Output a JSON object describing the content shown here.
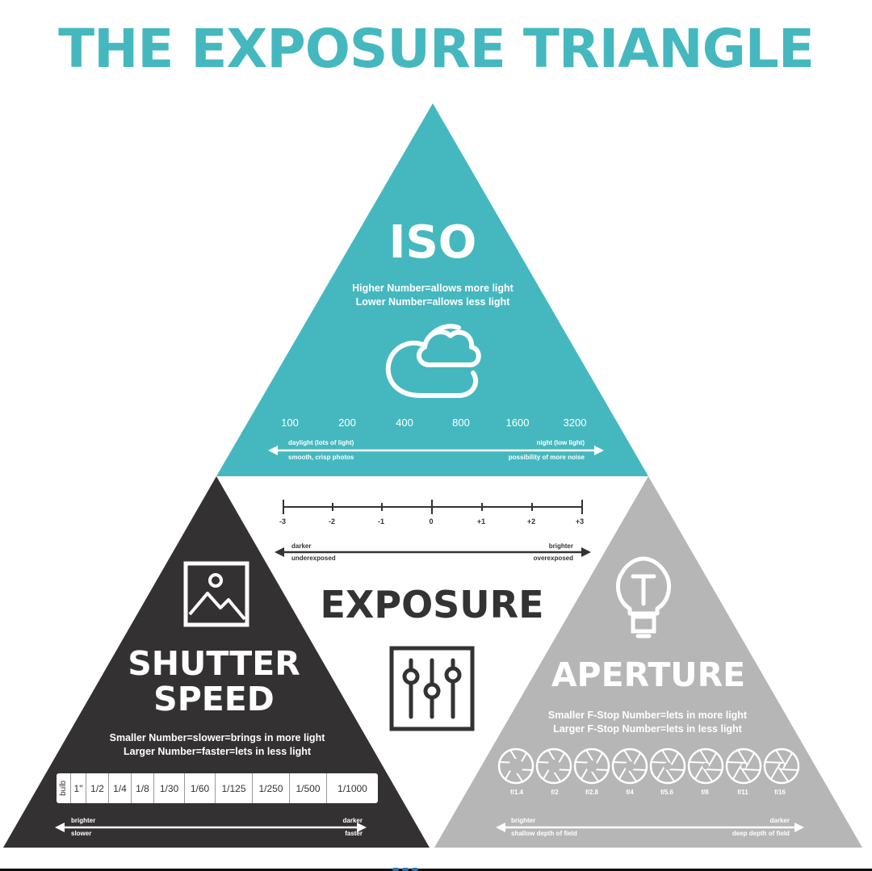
{
  "title": "THE EXPOSURE TRIANGLE",
  "colors": {
    "iso": "#45b8bf",
    "shutter": "#333132",
    "aperture": "#b7b6b7",
    "center_text": "#333333"
  },
  "iso": {
    "heading": "ISO",
    "line1": "Higher Number=allows more light",
    "line2": "Lower Number=allows less light",
    "icon": "cloud-icon",
    "values": [
      "100",
      "200",
      "400",
      "800",
      "1600",
      "3200"
    ],
    "left_top": "daylight (lots of light)",
    "left_bottom": "smooth, crisp photos",
    "right_top": "night (low light)",
    "right_bottom": "possibility of more noise"
  },
  "exposure": {
    "heading": "EXPOSURE",
    "scale": [
      "-3",
      "-2",
      "-1",
      "0",
      "+1",
      "+2",
      "+3"
    ],
    "left_top": "darker",
    "left_bottom": "underexposed",
    "right_top": "brighter",
    "right_bottom": "overexposed",
    "icon": "sliders-icon"
  },
  "shutter": {
    "heading_line1": "SHUTTER",
    "heading_line2": "SPEED",
    "icon": "landscape-photo-icon",
    "line1": "Smaller Number=slower=brings in more light",
    "line2": "Larger Number=faster=lets in less light",
    "values": [
      "bulb",
      "1\"",
      "1/2",
      "1/4",
      "1/8",
      "1/30",
      "1/60",
      "1/125",
      "1/250",
      "1/500",
      "1/1000"
    ],
    "left_top": "brighter",
    "left_bottom": "slower",
    "right_top": "darker",
    "right_bottom": "faster"
  },
  "aperture": {
    "heading": "APERTURE",
    "icon": "light-bulb-icon",
    "line1": "Smaller F-Stop Number=lets in more light",
    "line2": "Larger F-Stop Number=lets in less light",
    "fstops": [
      "f/1.4",
      "f/2",
      "f/2.8",
      "f/4",
      "f/5.6",
      "f/8",
      "f/11",
      "f/16"
    ],
    "left_top": "brighter",
    "left_bottom": "shallow depth of field",
    "right_top": "darker",
    "right_bottom": "deep depth of field"
  }
}
